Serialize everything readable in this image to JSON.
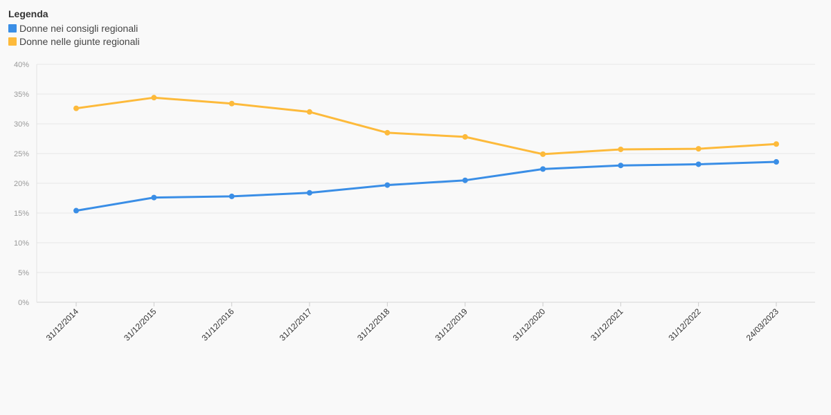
{
  "legend": {
    "title": "Legenda"
  },
  "chart_data": {
    "type": "line",
    "title": "",
    "xlabel": "",
    "ylabel": "",
    "ylim": [
      0,
      40
    ],
    "yticks": [
      "0%",
      "5%",
      "10%",
      "15%",
      "20%",
      "25%",
      "30%",
      "35%",
      "40%"
    ],
    "categories": [
      "31/12/2014",
      "31/12/2015",
      "31/12/2016",
      "31/12/2017",
      "31/12/2018",
      "31/12/2019",
      "31/12/2020",
      "31/12/2021",
      "31/12/2022",
      "24/03/2023"
    ],
    "grid": true,
    "legend_position": "top-left",
    "series": [
      {
        "name": "Donne nei consigli regionali",
        "color": "#3a8ee6",
        "values": [
          15.4,
          17.6,
          17.8,
          18.4,
          19.7,
          20.5,
          22.4,
          23.0,
          23.2,
          23.6
        ]
      },
      {
        "name": "Donne nelle giunte regionali",
        "color": "#fdba3b",
        "values": [
          32.6,
          34.4,
          33.4,
          32.0,
          28.5,
          27.8,
          24.9,
          25.7,
          25.8,
          26.6
        ]
      }
    ]
  }
}
